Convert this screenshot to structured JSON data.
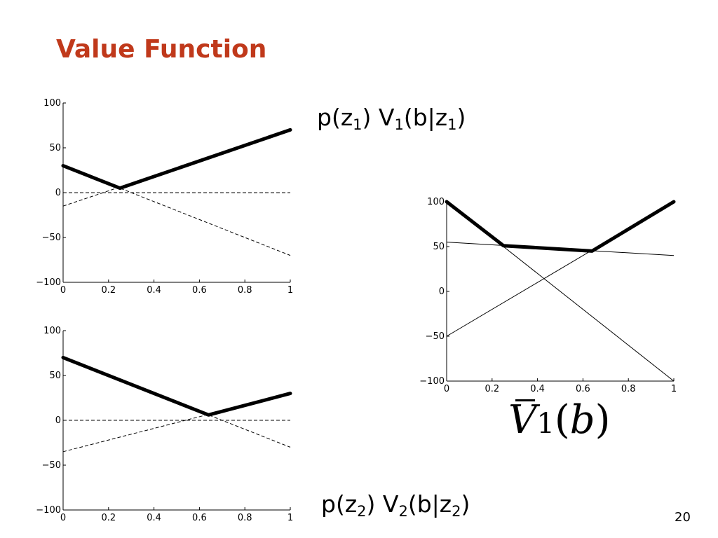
{
  "slide": {
    "title": "Value Function",
    "page_number": "20"
  },
  "labels": {
    "top": {
      "p": "p(z",
      "p_sub": "1",
      "mid": ") V",
      "v_sub": "1",
      "cond": "(b|z",
      "cond_sub": "1",
      "end": ")"
    },
    "bottom": {
      "p": "p(z",
      "p_sub": "2",
      "mid": ") V",
      "v_sub": "2",
      "cond": "(b|z",
      "cond_sub": "2",
      "end": ")"
    },
    "right": {
      "letter": "V",
      "sub": "1",
      "arg_open": "(",
      "arg": "b",
      "arg_close": ")"
    }
  },
  "chart_data": [
    {
      "id": "top",
      "type": "line",
      "xlim": [
        0,
        1
      ],
      "ylim": [
        -100,
        100
      ],
      "xticks": [
        0,
        0.2,
        0.4,
        0.6,
        0.8,
        1
      ],
      "yticks": [
        -100,
        -50,
        0,
        50,
        100
      ],
      "xtick_labels": [
        "0",
        "0.2",
        "0.4",
        "0.6",
        "0.8",
        "1"
      ],
      "ytick_labels": [
        "−100",
        "−50",
        "0",
        "50",
        "100"
      ],
      "series": [
        {
          "style": "dashed-thin",
          "x": [
            0,
            1
          ],
          "y": [
            0,
            0
          ]
        },
        {
          "style": "dashed-thin",
          "x": [
            0,
            1
          ],
          "y": [
            -15,
            70
          ]
        },
        {
          "style": "dashed-thin",
          "x": [
            0,
            1
          ],
          "y": [
            30,
            -70
          ]
        },
        {
          "style": "solid-thick",
          "x": [
            0,
            0.25,
            1
          ],
          "y": [
            30,
            5,
            70
          ]
        }
      ]
    },
    {
      "id": "bottom",
      "type": "line",
      "xlim": [
        0,
        1
      ],
      "ylim": [
        -100,
        100
      ],
      "xticks": [
        0,
        0.2,
        0.4,
        0.6,
        0.8,
        1
      ],
      "yticks": [
        -100,
        -50,
        0,
        50,
        100
      ],
      "xtick_labels": [
        "0",
        "0.2",
        "0.4",
        "0.6",
        "0.8",
        "1"
      ],
      "ytick_labels": [
        "−100",
        "−50",
        "0",
        "50",
        "100"
      ],
      "series": [
        {
          "style": "dashed-thin",
          "x": [
            0,
            1
          ],
          "y": [
            0,
            0
          ]
        },
        {
          "style": "dashed-thin",
          "x": [
            0,
            1
          ],
          "y": [
            -35,
            30
          ]
        },
        {
          "style": "dashed-thin",
          "x": [
            0,
            1
          ],
          "y": [
            70,
            -30
          ]
        },
        {
          "style": "solid-thick",
          "x": [
            0,
            0.64,
            1
          ],
          "y": [
            70,
            6,
            30
          ]
        }
      ]
    },
    {
      "id": "right",
      "type": "line",
      "xlim": [
        0,
        1
      ],
      "ylim": [
        -100,
        100
      ],
      "xticks": [
        0,
        0.2,
        0.4,
        0.6,
        0.8,
        1
      ],
      "yticks": [
        -100,
        -50,
        0,
        50,
        100
      ],
      "xtick_labels": [
        "0",
        "0.2",
        "0.4",
        "0.6",
        "0.8",
        "1"
      ],
      "ytick_labels": [
        "−100",
        "−50",
        "0",
        "50",
        "100"
      ],
      "series": [
        {
          "style": "solid-thin",
          "x": [
            0,
            1
          ],
          "y": [
            55,
            40
          ]
        },
        {
          "style": "solid-thin",
          "x": [
            0,
            1
          ],
          "y": [
            -50,
            100
          ]
        },
        {
          "style": "solid-thin",
          "x": [
            0,
            1
          ],
          "y": [
            100,
            -100
          ]
        },
        {
          "style": "solid-thick",
          "x": [
            0,
            0.25,
            0.64,
            1
          ],
          "y": [
            100,
            51,
            45,
            100
          ]
        }
      ]
    }
  ]
}
